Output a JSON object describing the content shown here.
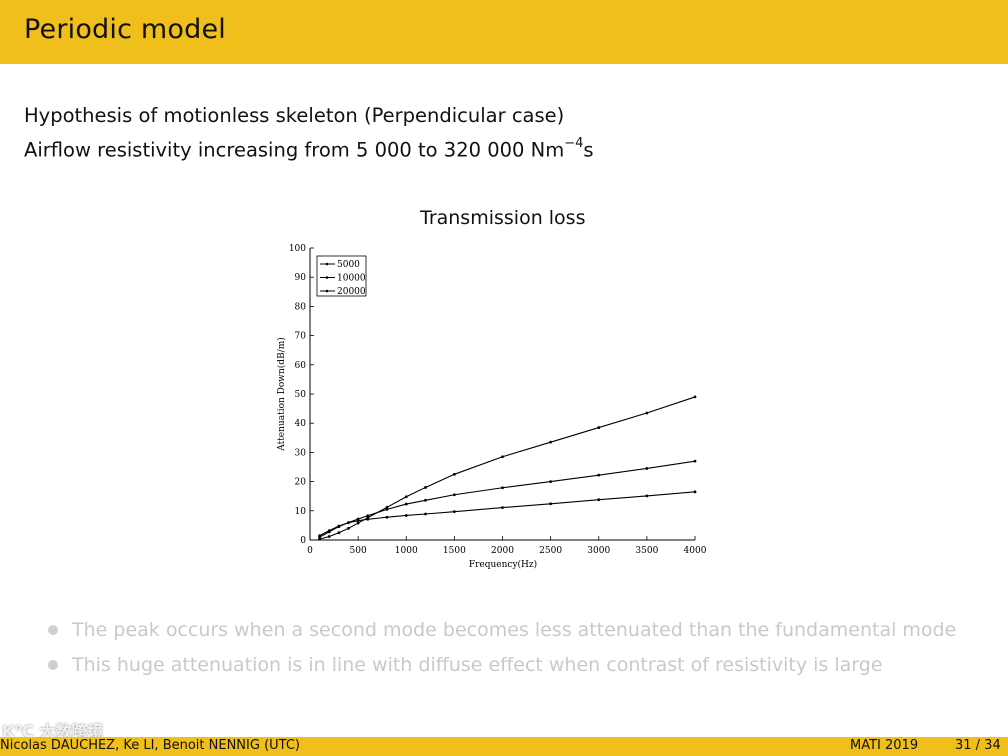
{
  "slide": {
    "title": "Periodic model",
    "line1": "Hypothesis of motionless skeleton (Perpendicular case)",
    "line2_text": "Airflow resistivity increasing from 5 000 to 320 000 Nm",
    "line2_sup": "−4",
    "line2_tail": "s",
    "bullets": [
      "The peak occurs when a second mode becomes less attenuated than the fundamental mode",
      "This huge attenuation is in line with diffuse effect when contrast of resistivity is large"
    ]
  },
  "footer": {
    "authors": "Nicolas DAUCHEZ, Ke LI, Benoit NENNIG  (UTC)",
    "conference": "MATI 2019",
    "page": "31 / 34"
  },
  "watermark": "K℃ 大数跨境",
  "colors": {
    "header": "#f0bf1c",
    "footer": "#f0bf1c",
    "bullet_text": "#c9c9c9"
  },
  "chart_data": {
    "type": "line",
    "title": "Transmission loss",
    "xlabel": "Frequency(Hz)",
    "ylabel": "Attenuation Down(dB/m)",
    "xlim": [
      0,
      4000
    ],
    "ylim": [
      0,
      100
    ],
    "xticks": [
      0,
      500,
      1000,
      1500,
      2000,
      2500,
      3000,
      3500,
      4000
    ],
    "yticks": [
      0,
      10,
      20,
      30,
      40,
      50,
      60,
      70,
      80,
      90,
      100
    ],
    "legend_position": "top-left",
    "grid": false,
    "x": [
      100,
      200,
      300,
      400,
      500,
      600,
      800,
      1000,
      1200,
      1500,
      2000,
      2500,
      3000,
      3500,
      4000
    ],
    "series": [
      {
        "name": "5000",
        "values": [
          0.3,
          1.2,
          2.5,
          4.0,
          5.8,
          7.6,
          11.2,
          14.8,
          18.0,
          22.5,
          28.5,
          33.5,
          38.5,
          43.5,
          49.0
        ]
      },
      {
        "name": "10000",
        "values": [
          1.0,
          2.8,
          4.6,
          6.0,
          7.2,
          8.3,
          10.5,
          12.3,
          13.6,
          15.5,
          17.9,
          20.0,
          22.2,
          24.5,
          27.0
        ]
      },
      {
        "name": "20000",
        "values": [
          1.5,
          3.2,
          4.8,
          5.9,
          6.6,
          7.1,
          7.8,
          8.4,
          8.9,
          9.7,
          11.1,
          12.4,
          13.8,
          15.1,
          16.5
        ]
      }
    ]
  }
}
